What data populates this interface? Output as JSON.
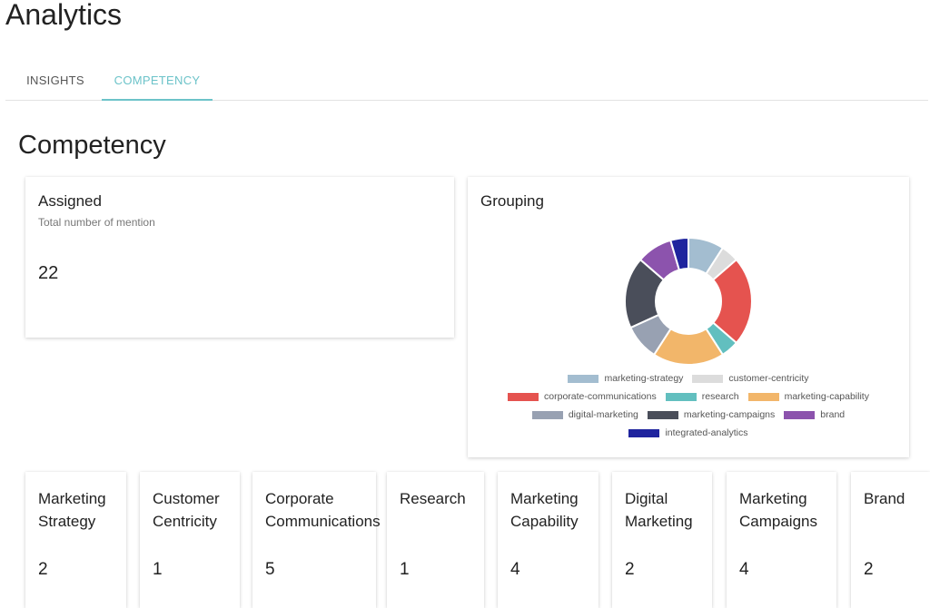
{
  "app": {
    "title": "Analytics"
  },
  "tabs": [
    {
      "label": "INSIGHTS",
      "active": false
    },
    {
      "label": "COMPETENCY",
      "active": true
    }
  ],
  "section": {
    "title": "Competency"
  },
  "assigned": {
    "title": "Assigned",
    "subtitle": "Total number of mention",
    "value": "22"
  },
  "grouping": {
    "title": "Grouping"
  },
  "chart_data": {
    "type": "pie",
    "title": "Grouping",
    "legend": "bottom",
    "categories": [
      "marketing-strategy",
      "customer-centricity",
      "corporate-communications",
      "research",
      "marketing-capability",
      "digital-marketing",
      "marketing-campaigns",
      "brand",
      "integrated-analytics"
    ],
    "values": [
      2,
      1,
      5,
      1,
      4,
      2,
      4,
      2,
      1
    ],
    "colors": [
      "#a3bdd0",
      "#dcdcdc",
      "#e5534f",
      "#62bfbf",
      "#f2b66a",
      "#98a1b2",
      "#4a4e5a",
      "#8c53ad",
      "#1f249e"
    ]
  },
  "competencies": [
    {
      "name_lines": [
        "Marketing",
        "Strategy"
      ],
      "value": "2"
    },
    {
      "name_lines": [
        "Customer",
        "Centricity"
      ],
      "value": "1"
    },
    {
      "name_lines": [
        "Corporate",
        "Communications"
      ],
      "value": "5"
    },
    {
      "name_lines": [
        "Research"
      ],
      "value": "1"
    },
    {
      "name_lines": [
        "Marketing",
        "Capability"
      ],
      "value": "4"
    },
    {
      "name_lines": [
        "Digital",
        "Marketing"
      ],
      "value": "2"
    },
    {
      "name_lines": [
        "Marketing",
        "Campaigns"
      ],
      "value": "4"
    },
    {
      "name_lines": [
        "Brand"
      ],
      "value": "2"
    }
  ]
}
